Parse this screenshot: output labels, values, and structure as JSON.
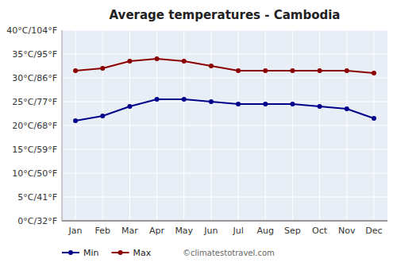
{
  "chart_data": {
    "type": "line",
    "title": "Average temperatures - Cambodia",
    "categories": [
      "Jan",
      "Feb",
      "Mar",
      "Apr",
      "May",
      "Jun",
      "Jul",
      "Aug",
      "Sep",
      "Oct",
      "Nov",
      "Dec"
    ],
    "series": [
      {
        "name": "Min",
        "color": "#00008B",
        "marker": "circle",
        "values": [
          21,
          22,
          24,
          25.5,
          25.5,
          25,
          24.5,
          24.5,
          24.5,
          24,
          23.5,
          21.5
        ]
      },
      {
        "name": "Max",
        "color": "#8B0000",
        "marker": "circle",
        "values": [
          31.5,
          32,
          33.5,
          34,
          33.5,
          32.5,
          31.5,
          31.5,
          31.5,
          31.5,
          31.5,
          31
        ]
      }
    ],
    "ylim": [
      0,
      40
    ],
    "yticks": [
      {
        "value": 0,
        "label": "0°C/32°F"
      },
      {
        "value": 5,
        "label": "5°C/41°F"
      },
      {
        "value": 10,
        "label": "10°C/50°F"
      },
      {
        "value": 15,
        "label": "15°C/59°F"
      },
      {
        "value": 20,
        "label": "20°C/68°F"
      },
      {
        "value": 25,
        "label": "25°C/77°F"
      },
      {
        "value": 30,
        "label": "30°C/86°F"
      },
      {
        "value": 35,
        "label": "35°C/95°F"
      },
      {
        "value": 40,
        "label": "40°C/104°F"
      }
    ],
    "grid": true,
    "legend": "bottom",
    "annotations": [
      "©climatestotravel.com"
    ]
  }
}
